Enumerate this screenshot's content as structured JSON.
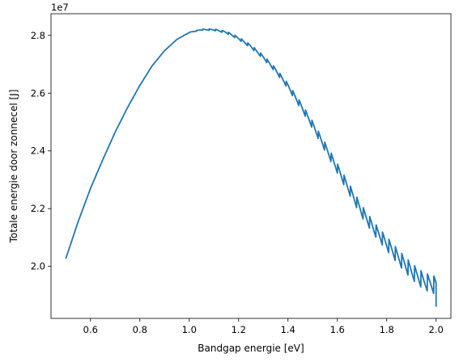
{
  "chart_data": {
    "type": "line",
    "title": "",
    "xlabel": "Bandgap energie [eV]",
    "ylabel": "Totale energie door zonnecel [J]",
    "offset_text": "1e7",
    "xlim": [
      0.44,
      2.06
    ],
    "ylim": [
      1.82,
      2.875
    ],
    "xticks": [
      0.6,
      0.8,
      1.0,
      1.2,
      1.4,
      1.6,
      1.8,
      2.0
    ],
    "xtick_labels": [
      "0.6",
      "0.8",
      "1.0",
      "1.2",
      "1.4",
      "1.6",
      "1.8",
      "2.0"
    ],
    "yticks": [
      2.0,
      2.2,
      2.4,
      2.6,
      2.8
    ],
    "ytick_labels": [
      "2.0",
      "2.2",
      "2.4",
      "2.6",
      "2.8"
    ],
    "grid": false,
    "series": [
      {
        "color": "#1f77b4",
        "x": [
          0.5,
          0.55,
          0.6,
          0.65,
          0.7,
          0.75,
          0.8,
          0.85,
          0.9,
          0.95,
          1.0,
          1.05,
          1.1,
          1.15,
          1.2,
          1.25,
          1.3,
          1.35,
          1.4,
          1.45,
          1.5,
          1.55,
          1.6,
          1.65,
          1.7,
          1.75,
          1.8,
          1.85,
          1.9,
          1.95,
          2.0
        ],
        "y": [
          2.027,
          2.155,
          2.27,
          2.37,
          2.465,
          2.55,
          2.627,
          2.695,
          2.747,
          2.786,
          2.81,
          2.82,
          2.82,
          2.811,
          2.79,
          2.762,
          2.725,
          2.68,
          2.625,
          2.56,
          2.49,
          2.415,
          2.34,
          2.265,
          2.19,
          2.13,
          2.08,
          2.03,
          1.985,
          1.95,
          1.935
        ],
        "final_drop_to": 1.86
      }
    ]
  }
}
